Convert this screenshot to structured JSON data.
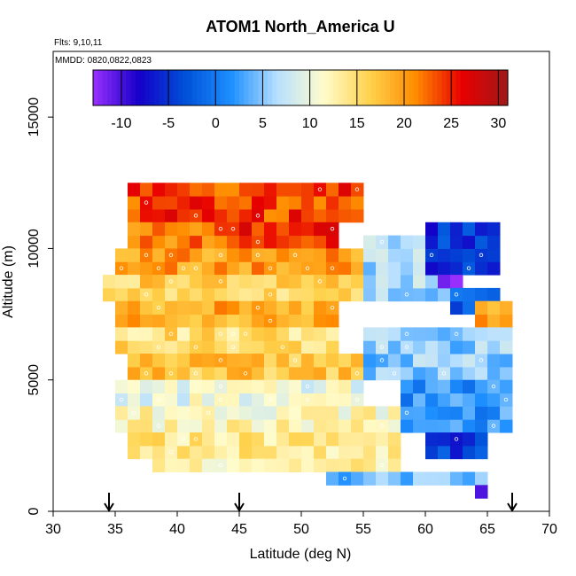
{
  "chart_data": {
    "type": "heatmap",
    "title": "ATOM1 North_America U",
    "flights_label": "Flts: 9,10,11",
    "dates_label": "MMDD: 0820,0822,0823",
    "xlabel": "Latitude (deg N)",
    "ylabel": "Altitude (m)",
    "xlim": [
      30,
      70
    ],
    "ylim": [
      0,
      17500
    ],
    "x_ticks": [
      30,
      35,
      40,
      45,
      50,
      55,
      60,
      65,
      70
    ],
    "y_ticks": [
      0,
      5000,
      10000,
      15000
    ],
    "colorbar": {
      "range": [
        -13,
        31
      ],
      "ticks": [
        -10,
        -5,
        0,
        5,
        10,
        15,
        20,
        25,
        30
      ],
      "colors": [
        "#9b30ff",
        "#1400c8",
        "#0050d8",
        "#1e90ff",
        "#b8e0ff",
        "#fffccc",
        "#ffd24d",
        "#ff8c00",
        "#e80000",
        "#a01818"
      ]
    },
    "flight_arrows_latitude": [
      34.5,
      45.0,
      67.0
    ],
    "grid_cell": {
      "dlat": 1.0,
      "dalt": 500
    },
    "regions": [
      {
        "lat": [
          36,
          55
        ],
        "alt": [
          11000,
          12500
        ],
        "u": 24
      },
      {
        "lat": [
          36,
          45
        ],
        "alt": [
          10000,
          11000
        ],
        "u": 22
      },
      {
        "lat": [
          45,
          53
        ],
        "alt": [
          10000,
          11000
        ],
        "u": 25
      },
      {
        "lat": [
          35,
          55
        ],
        "alt": [
          9000,
          10000
        ],
        "u": 20
      },
      {
        "lat": [
          34,
          55
        ],
        "alt": [
          8000,
          9000
        ],
        "u": 16
      },
      {
        "lat": [
          35,
          53
        ],
        "alt": [
          7000,
          8000
        ],
        "u": 19
      },
      {
        "lat": [
          35,
          53
        ],
        "alt": [
          6000,
          7000
        ],
        "u": 15
      },
      {
        "lat": [
          36,
          55
        ],
        "alt": [
          5000,
          6000
        ],
        "u": 17
      },
      {
        "lat": [
          35,
          55
        ],
        "alt": [
          4000,
          5000
        ],
        "u": 10
      },
      {
        "lat": [
          35,
          60
        ],
        "alt": [
          3000,
          4000
        ],
        "u": 12
      },
      {
        "lat": [
          36,
          58
        ],
        "alt": [
          2000,
          3000
        ],
        "u": 14
      },
      {
        "lat": [
          38,
          58
        ],
        "alt": [
          1500,
          2000
        ],
        "u": 13
      },
      {
        "lat": [
          55,
          62
        ],
        "alt": [
          8000,
          10500
        ],
        "u": 6
      },
      {
        "lat": [
          60,
          66
        ],
        "alt": [
          9000,
          11000
        ],
        "u": -5
      },
      {
        "lat": [
          61,
          63
        ],
        "alt": [
          8500,
          9000
        ],
        "u": -12
      },
      {
        "lat": [
          62,
          66
        ],
        "alt": [
          7500,
          8500
        ],
        "u": -3
      },
      {
        "lat": [
          64,
          67
        ],
        "alt": [
          7000,
          8000
        ],
        "u": 20
      },
      {
        "lat": [
          55,
          67
        ],
        "alt": [
          5000,
          7000
        ],
        "u": 5
      },
      {
        "lat": [
          58,
          67
        ],
        "alt": [
          3000,
          5000
        ],
        "u": 2
      },
      {
        "lat": [
          60,
          65
        ],
        "alt": [
          2000,
          3000
        ],
        "u": -4
      },
      {
        "lat": [
          52,
          65
        ],
        "alt": [
          1000,
          1500
        ],
        "u": 4
      },
      {
        "lat": [
          64,
          65
        ],
        "alt": [
          500,
          1000
        ],
        "u": -8
      }
    ]
  }
}
